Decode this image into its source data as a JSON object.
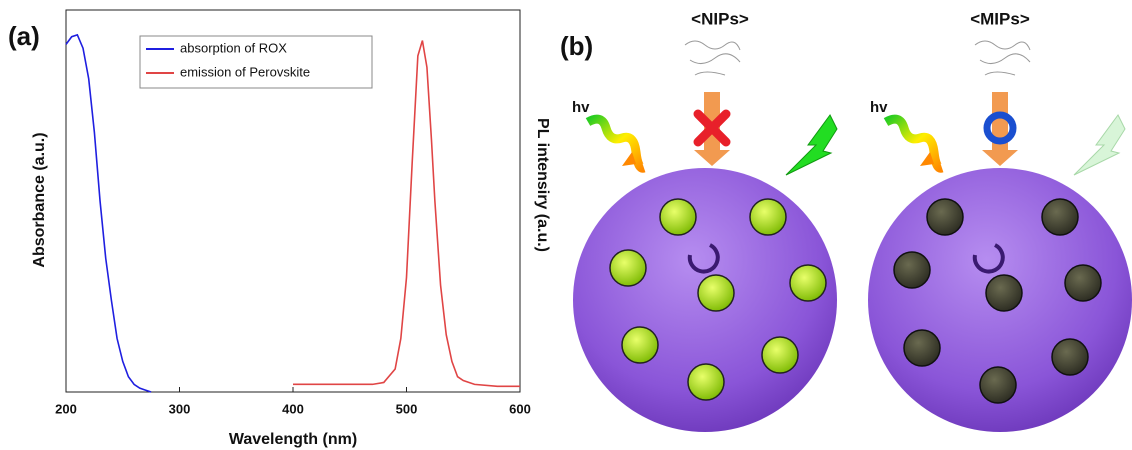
{
  "chart_data": {
    "type": "line",
    "panel_label": "(a)",
    "xlabel": "Wavelength (nm)",
    "ylabel": "Absorbance (a.u.)",
    "y2label": "PL intensiry (a.u.)",
    "xlim": [
      200,
      600
    ],
    "xticks": [
      200,
      300,
      400,
      500,
      600
    ],
    "ylim": [
      0,
      1
    ],
    "legend": "top",
    "series": [
      {
        "name": "absorption of ROX",
        "color": "#1f1fe0",
        "x": [
          200,
          205,
          210,
          215,
          220,
          225,
          230,
          235,
          240,
          245,
          250,
          255,
          260,
          265,
          270,
          275
        ],
        "values": [
          0.91,
          0.93,
          0.935,
          0.9,
          0.82,
          0.68,
          0.5,
          0.35,
          0.24,
          0.14,
          0.08,
          0.04,
          0.02,
          0.01,
          0.005,
          0.0
        ]
      },
      {
        "name": "emission of Perovskite",
        "color": "#e04545",
        "x": [
          400,
          440,
          470,
          480,
          490,
          495,
          500,
          505,
          510,
          514,
          518,
          522,
          525,
          530,
          535,
          540,
          545,
          550,
          560,
          580,
          600
        ],
        "values": [
          0.02,
          0.02,
          0.02,
          0.025,
          0.06,
          0.14,
          0.3,
          0.6,
          0.88,
          0.92,
          0.85,
          0.66,
          0.5,
          0.28,
          0.15,
          0.08,
          0.04,
          0.03,
          0.02,
          0.015,
          0.015
        ]
      }
    ]
  },
  "diagram": {
    "panel_label": "(b)",
    "panels": [
      {
        "title": "<NIPs>",
        "light": "hv"
      },
      {
        "title": "<MIPs>",
        "light": "hv"
      }
    ]
  }
}
